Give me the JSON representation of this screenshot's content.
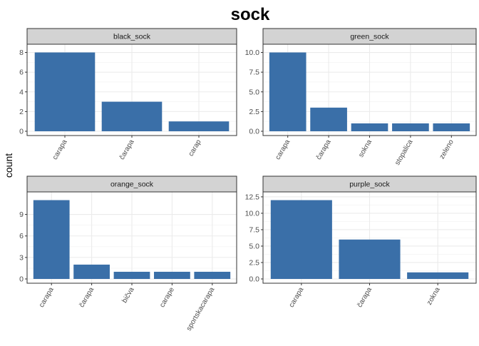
{
  "title": "sock",
  "ylabel": "count",
  "bar_color": "#3A6FA8",
  "strip_color": "#D3D3D3",
  "chart_data": [
    {
      "type": "bar",
      "panel": "black_sock",
      "categories": [
        "carapa",
        "čarapa",
        "carap"
      ],
      "values": [
        8,
        3,
        1
      ],
      "ylim": [
        0,
        8.4
      ],
      "yticks": [
        0,
        2,
        4,
        6,
        8
      ],
      "ytick_labels": [
        "0",
        "2",
        "4",
        "6",
        "8"
      ]
    },
    {
      "type": "bar",
      "panel": "green_sock",
      "categories": [
        "carapa",
        "čarapa",
        "sokna",
        "stopalica",
        "zeleno"
      ],
      "values": [
        10,
        3,
        1,
        1,
        1
      ],
      "ylim": [
        0,
        10.5
      ],
      "yticks": [
        0,
        2.5,
        5,
        7.5,
        10
      ],
      "ytick_labels": [
        "0.0",
        "2.5",
        "5.0",
        "7.5",
        "10.0"
      ]
    },
    {
      "type": "bar",
      "panel": "orange_sock",
      "categories": [
        "carapa",
        "čarapa",
        "bičva",
        "carape",
        "sportskacarapa"
      ],
      "values": [
        11,
        2,
        1,
        1,
        1
      ],
      "ylim": [
        0,
        11.55
      ],
      "yticks": [
        0,
        3,
        6,
        9
      ],
      "ytick_labels": [
        "0",
        "3",
        "6",
        "9"
      ]
    },
    {
      "type": "bar",
      "panel": "purple_sock",
      "categories": [
        "carapa",
        "čarapa",
        "zokna"
      ],
      "values": [
        12,
        6,
        1
      ],
      "ylim": [
        0,
        12.6
      ],
      "yticks": [
        0,
        2.5,
        5,
        7.5,
        10,
        12.5
      ],
      "ytick_labels": [
        "0.0",
        "2.5",
        "5.0",
        "7.5",
        "10.0",
        "12.5"
      ]
    }
  ]
}
